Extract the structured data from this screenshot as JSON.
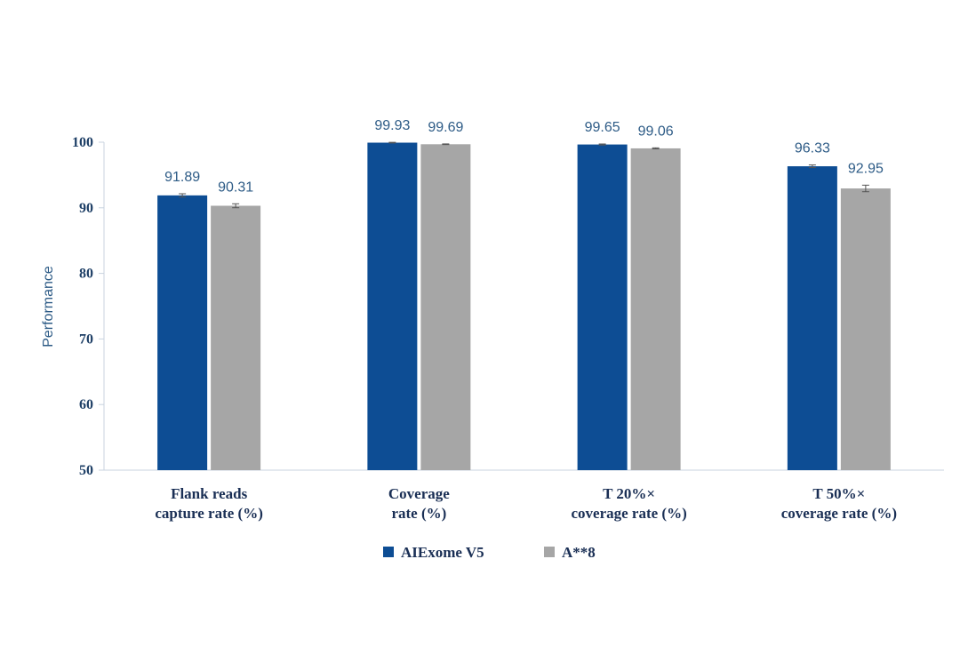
{
  "chart_data": {
    "type": "bar",
    "ylabel": "Performance",
    "ylim": [
      50,
      100
    ],
    "yticks": [
      50,
      60,
      70,
      80,
      90,
      100
    ],
    "grid": false,
    "legend_position": "bottom",
    "categories": [
      [
        "Flank reads",
        "capture rate (%)"
      ],
      [
        "Coverage",
        "rate (%)"
      ],
      [
        "T 20%×",
        "coverage rate (%)"
      ],
      [
        "T 50%×",
        "coverage rate (%)"
      ]
    ],
    "series": [
      {
        "name": "AIExome V5",
        "color": "#0d4d94",
        "values": [
          91.89,
          99.93,
          99.65,
          96.33
        ],
        "labels": [
          "91.89",
          "99.93",
          "99.65",
          "96.33"
        ],
        "error": [
          0.25,
          0.05,
          0.08,
          0.2
        ]
      },
      {
        "name": "A**8",
        "color": "#a6a6a6",
        "values": [
          90.31,
          99.69,
          99.06,
          92.95
        ],
        "labels": [
          "90.31",
          "99.69",
          "99.06",
          "92.95"
        ],
        "error": [
          0.3,
          0.05,
          0.08,
          0.5
        ]
      }
    ]
  }
}
